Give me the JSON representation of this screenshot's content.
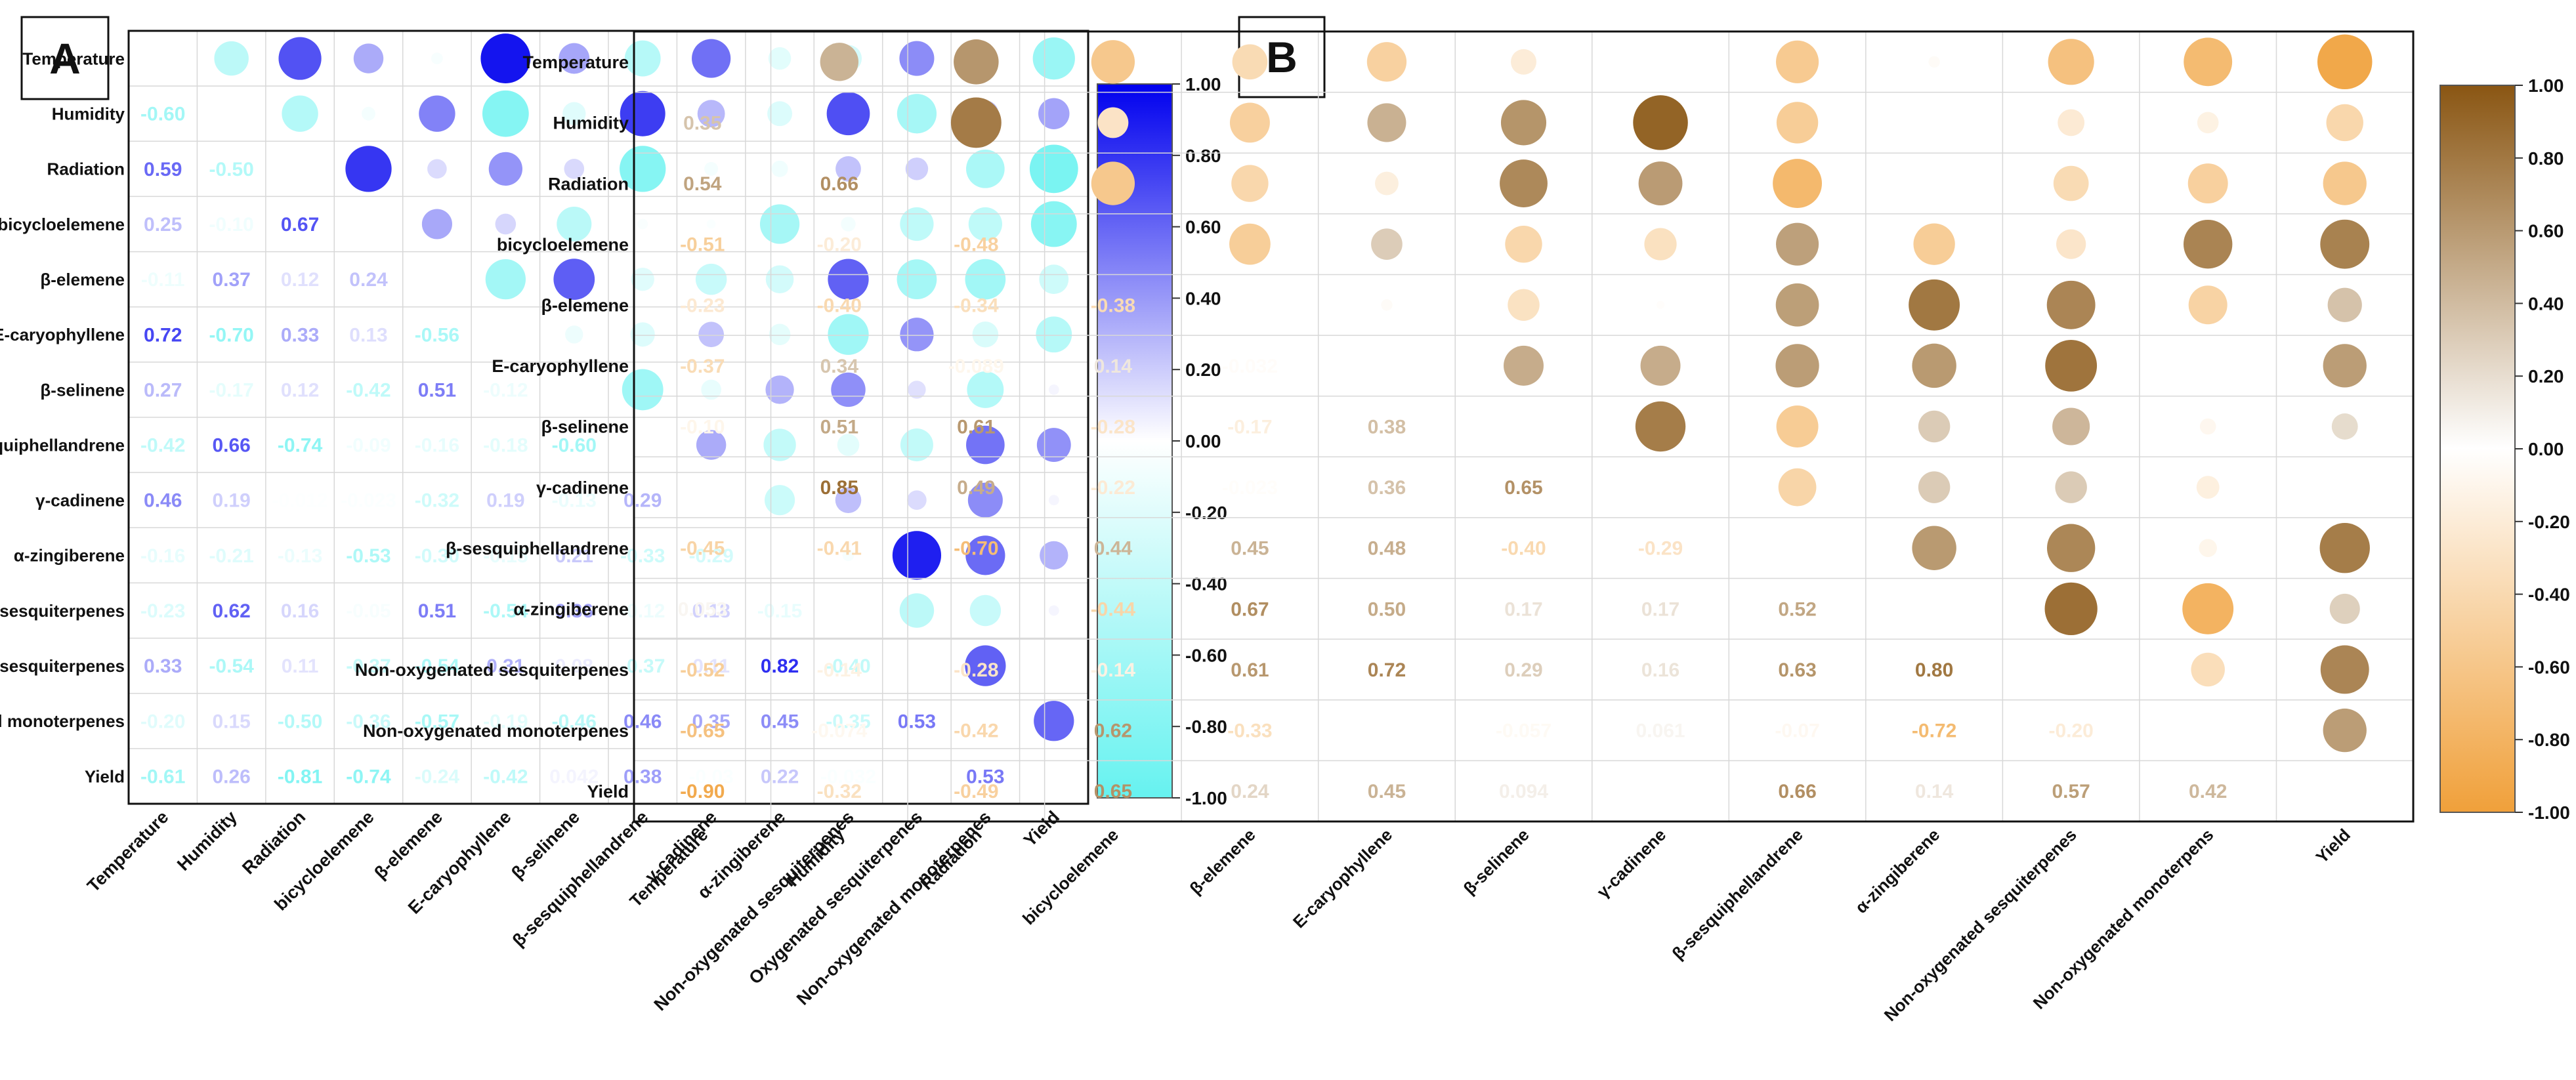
{
  "chart_data": [
    {
      "panel_label": "A",
      "type": "heatmap",
      "style": "correlogram-lower-numbers-upper-circles",
      "row_labels": [
        "Temperature",
        "Humidity",
        "Radiation",
        "bicycloelemene",
        "β-elemene",
        "E-caryophyllene",
        "β-selinene",
        "β-sesquiphellandrene",
        "γ-cadinene",
        "α-zingiberene",
        "Non-oxygenated sesquiterpenes",
        "Oxygenated sesquiterpenes",
        "Non-oxygenated monoterpenes",
        "Yield"
      ],
      "col_labels": [
        "Temperature",
        "Humidity",
        "Radiation",
        "bicycloelemene",
        "β-elemene",
        "E-caryophyllene",
        "β-selinene",
        "β-sesquiphellandrene",
        "γ-cadinene",
        "α-zingiberene",
        "Non-oxygenated sesquiterpenes",
        "Oxygenated sesquiterpenes",
        "Non-oxygenated monoterpenes",
        "Yield"
      ],
      "lower_values": [
        [
          null
        ],
        [
          -0.6,
          null
        ],
        [
          0.59,
          -0.5,
          null
        ],
        [
          0.25,
          -0.1,
          0.67,
          null
        ],
        [
          -0.11,
          0.37,
          0.12,
          0.24,
          null
        ],
        [
          0.72,
          -0.7,
          0.33,
          0.13,
          -0.56,
          null
        ],
        [
          0.27,
          -0.17,
          0.12,
          -0.42,
          0.51,
          -0.12,
          null
        ],
        [
          -0.42,
          0.66,
          -0.74,
          -0.09,
          -0.16,
          -0.18,
          -0.6,
          null
        ],
        [
          0.46,
          0.19,
          -0.012,
          -0.023,
          -0.32,
          0.19,
          -0.13,
          0.29,
          null
        ],
        [
          -0.16,
          -0.21,
          -0.13,
          -0.53,
          -0.3,
          -0.15,
          0.21,
          -0.33,
          -0.29,
          null
        ],
        [
          -0.23,
          0.62,
          0.16,
          -0.05,
          0.51,
          -0.54,
          0.36,
          -0.12,
          0.18,
          -0.15,
          null
        ],
        [
          0.33,
          -0.54,
          0.11,
          -0.37,
          -0.54,
          0.31,
          0.08,
          -0.37,
          0.11,
          0.82,
          -0.4,
          null
        ],
        [
          -0.2,
          0.15,
          -0.5,
          -0.36,
          -0.57,
          -0.19,
          -0.46,
          0.46,
          0.35,
          0.45,
          -0.35,
          0.53,
          null
        ],
        [
          -0.61,
          0.26,
          -0.81,
          -0.74,
          -0.24,
          -0.42,
          0.042,
          0.38,
          -0.03,
          0.22,
          -0.032,
          0.01,
          0.53,
          null
        ]
      ],
      "upper_values": [
        [
          null,
          -0.44,
          0.68,
          0.33,
          -0.05,
          0.92,
          0.35,
          -0.48,
          0.56,
          -0.19,
          -0.27,
          0.45,
          -0.22,
          -0.66
        ],
        [
          null,
          null,
          -0.49,
          -0.07,
          0.49,
          -0.8,
          -0.2,
          0.76,
          0.28,
          -0.23,
          0.69,
          -0.58,
          0.26,
          0.36
        ],
        [
          null,
          null,
          null,
          0.79,
          0.14,
          0.42,
          0.15,
          -0.79,
          -0.07,
          -0.1,
          0.24,
          0.19,
          -0.55,
          -0.87
        ],
        [
          null,
          null,
          null,
          null,
          0.34,
          0.16,
          -0.45,
          -0.04,
          -0.03,
          -0.58,
          -0.08,
          -0.42,
          -0.42,
          -0.78
        ],
        [
          null,
          null,
          null,
          null,
          null,
          -0.6,
          0.63,
          -0.2,
          -0.36,
          -0.29,
          0.62,
          -0.59,
          -0.61,
          -0.32
        ],
        [
          null,
          null,
          null,
          null,
          null,
          null,
          -0.12,
          -0.22,
          0.24,
          -0.17,
          -0.62,
          0.42,
          -0.25,
          -0.48
        ],
        [
          null,
          null,
          null,
          null,
          null,
          null,
          null,
          -0.63,
          -0.15,
          0.3,
          0.44,
          0.12,
          -0.5,
          0.04
        ],
        [
          null,
          null,
          null,
          null,
          null,
          null,
          null,
          null,
          0.33,
          -0.39,
          -0.18,
          -0.4,
          0.55,
          0.43
        ],
        [
          null,
          null,
          null,
          null,
          null,
          null,
          null,
          null,
          null,
          -0.34,
          0.25,
          0.14,
          0.45,
          0.04
        ],
        [
          null,
          null,
          null,
          null,
          null,
          null,
          null,
          null,
          null,
          null,
          -0.05,
          0.88,
          0.58,
          0.3
        ],
        [
          null,
          null,
          null,
          null,
          null,
          null,
          null,
          null,
          null,
          null,
          null,
          -0.44,
          -0.36,
          0.04
        ],
        [
          null,
          null,
          null,
          null,
          null,
          null,
          null,
          null,
          null,
          null,
          null,
          null,
          0.62,
          0.01
        ],
        [
          null,
          null,
          null,
          null,
          null,
          null,
          null,
          null,
          null,
          null,
          null,
          null,
          null,
          0.6
        ],
        [
          null,
          null,
          null,
          null,
          null,
          null,
          null,
          null,
          null,
          null,
          null,
          null,
          null,
          null
        ]
      ],
      "colorbar": {
        "min": -1.0,
        "max": 1.0,
        "ticks": [
          "1.00",
          "0.80",
          "0.60",
          "0.40",
          "0.20",
          "0.00",
          "-0.20",
          "-0.40",
          "-0.60",
          "-0.80",
          "-1.00"
        ],
        "positive_color": "#0000ee",
        "negative_color": "#66f2f0",
        "zero_color": "#ffffff"
      }
    },
    {
      "panel_label": "B",
      "type": "heatmap",
      "style": "correlogram-lower-numbers-upper-circles",
      "row_labels": [
        "Temperature",
        "Humidity",
        "Radiation",
        "bicycloelemene",
        "β-elemene",
        "E-caryophyllene",
        "β-selinene",
        "γ-cadinene",
        "β-sesquiphellandrene",
        "α-zingiberene",
        "Non-oxygenated  sesquiterpenes",
        "Non-oxygenated monoterpenes",
        "Yield"
      ],
      "col_labels": [
        "Temperature",
        "Humidity",
        "Radiation",
        "bicycloelemene",
        "β-elemene",
        "E-caryophyllene",
        "β-selinene",
        "γ-cadinene",
        "β-sesquiphellandrene",
        "α-zingiberene",
        "Non-oxygenated  sesquiterpenes",
        "Non-oxygenated monoterpens",
        "Yield"
      ],
      "lower_values": [
        [
          null
        ],
        [
          0.35,
          null
        ],
        [
          0.54,
          0.66,
          null
        ],
        [
          -0.51,
          -0.2,
          -0.48,
          null
        ],
        [
          -0.23,
          -0.4,
          -0.34,
          -0.38,
          null
        ],
        [
          -0.37,
          0.34,
          -0.089,
          0.14,
          -0.032,
          null
        ],
        [
          -0.1,
          0.51,
          0.61,
          -0.28,
          -0.17,
          0.38,
          null
        ],
        [
          0.01,
          0.85,
          0.49,
          -0.22,
          -0.023,
          0.36,
          0.65,
          null
        ],
        [
          -0.45,
          -0.41,
          -0.7,
          0.44,
          0.45,
          0.48,
          -0.4,
          -0.29,
          null
        ],
        [
          0.053,
          0.01,
          0.01,
          -0.44,
          0.67,
          0.5,
          0.17,
          0.17,
          0.52,
          null
        ],
        [
          -0.52,
          -0.14,
          -0.28,
          -0.14,
          0.61,
          0.72,
          0.29,
          0.16,
          0.63,
          0.8,
          null
        ],
        [
          -0.65,
          -0.074,
          -0.42,
          0.62,
          -0.33,
          0.01,
          -0.057,
          0.061,
          -0.07,
          -0.72,
          -0.2,
          null
        ],
        [
          -0.9,
          -0.32,
          -0.49,
          0.65,
          0.24,
          0.45,
          0.094,
          0.01,
          0.66,
          0.14,
          0.57,
          0.42,
          null
        ]
      ],
      "upper_values": [
        [
          null,
          0.45,
          0.62,
          -0.58,
          -0.38,
          -0.48,
          -0.2,
          0.01,
          -0.56,
          -0.04,
          -0.65,
          -0.72,
          -0.92
        ],
        [
          null,
          null,
          0.78,
          -0.29,
          -0.49,
          0.46,
          0.63,
          0.92,
          -0.53,
          0.01,
          -0.22,
          -0.14,
          -0.42
        ],
        [
          null,
          null,
          null,
          -0.58,
          -0.42,
          -0.17,
          0.7,
          0.59,
          -0.74,
          0.01,
          -0.38,
          -0.49,
          -0.58
        ],
        [
          null,
          null,
          null,
          null,
          -0.52,
          0.3,
          -0.42,
          -0.32,
          0.56,
          -0.53,
          -0.27,
          0.73,
          0.74
        ],
        [
          null,
          null,
          null,
          null,
          null,
          -0.04,
          -0.31,
          -0.02,
          0.57,
          0.8,
          0.72,
          -0.46,
          0.36
        ],
        [
          null,
          null,
          null,
          null,
          null,
          null,
          0.49,
          0.49,
          0.58,
          0.6,
          0.82,
          0.01,
          0.58
        ],
        [
          null,
          null,
          null,
          null,
          null,
          null,
          null,
          0.77,
          -0.54,
          0.31,
          0.43,
          -0.08,
          0.21
        ],
        [
          null,
          null,
          null,
          null,
          null,
          null,
          null,
          null,
          -0.44,
          0.31,
          0.31,
          -0.16,
          0.01
        ],
        [
          null,
          null,
          null,
          null,
          null,
          null,
          null,
          null,
          null,
          0.6,
          0.71,
          -0.1,
          0.77
        ],
        [
          null,
          null,
          null,
          null,
          null,
          null,
          null,
          null,
          null,
          null,
          0.85,
          -0.8,
          0.28
        ],
        [
          null,
          null,
          null,
          null,
          null,
          null,
          null,
          null,
          null,
          null,
          null,
          -0.35,
          0.72
        ],
        [
          null,
          null,
          null,
          null,
          null,
          null,
          null,
          null,
          null,
          null,
          null,
          null,
          0.58
        ],
        [
          null,
          null,
          null,
          null,
          null,
          null,
          null,
          null,
          null,
          null,
          null,
          null,
          null
        ]
      ],
      "colorbar": {
        "min": -1.0,
        "max": 1.0,
        "ticks": [
          "1.00",
          "0.80",
          "0.60",
          "0.40",
          "0.20",
          "0.00",
          "-0.20",
          "-0.40",
          "-0.60",
          "-0.80",
          "-1.00"
        ],
        "positive_color": "#8a5613",
        "negative_color": "#f0a03a",
        "zero_color": "#ffffff"
      }
    }
  ]
}
